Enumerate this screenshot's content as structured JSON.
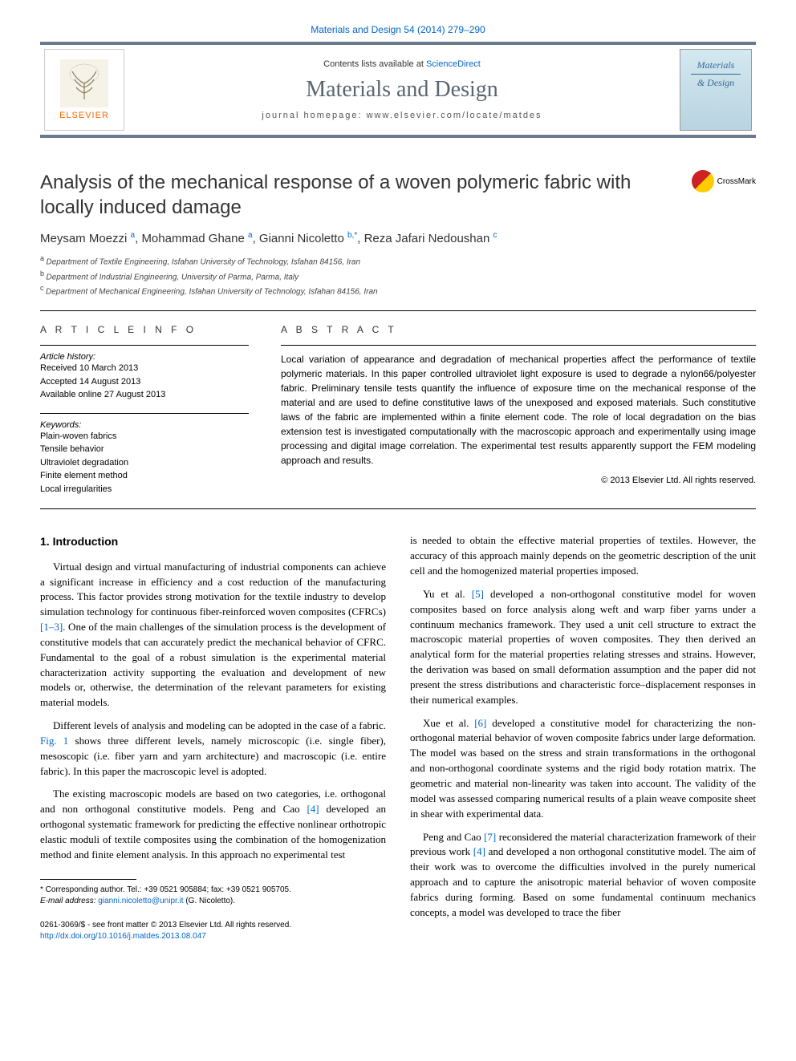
{
  "journal_ref": "Materials and Design 54 (2014) 279–290",
  "header": {
    "contents_prefix": "Contents lists available at ",
    "contents_link": "ScienceDirect",
    "journal_title": "Materials and Design",
    "homepage_label": "journal homepage: www.elsevier.com/locate/matdes",
    "publisher": "ELSEVIER",
    "cover_line1": "Materials",
    "cover_line2": "& Design"
  },
  "crossmark": "CrossMark",
  "article": {
    "title": "Analysis of the mechanical response of a woven polymeric fabric with locally induced damage",
    "authors_html": "Meysam Moezzi|a|, Mohammad Ghane|a|, Gianni Nicoletto|b,*|, Reza Jafari Nedoushan|c|",
    "authors": [
      {
        "name": "Meysam Moezzi",
        "sup": "a"
      },
      {
        "name": "Mohammad Ghane",
        "sup": "a"
      },
      {
        "name": "Gianni Nicoletto",
        "sup": "b,",
        "corr": "*"
      },
      {
        "name": "Reza Jafari Nedoushan",
        "sup": "c"
      }
    ],
    "affiliations": [
      {
        "sup": "a",
        "text": "Department of Textile Engineering, Isfahan University of Technology, Isfahan 84156, Iran"
      },
      {
        "sup": "b",
        "text": "Department of Industrial Engineering, University of Parma, Parma, Italy"
      },
      {
        "sup": "c",
        "text": "Department of Mechanical Engineering, Isfahan University of Technology, Isfahan 84156, Iran"
      }
    ]
  },
  "info": {
    "heading": "A R T I C L E   I N F O",
    "history_label": "Article history:",
    "received": "Received 10 March 2013",
    "accepted": "Accepted 14 August 2013",
    "online": "Available online 27 August 2013",
    "keywords_label": "Keywords:",
    "keywords": [
      "Plain-woven fabrics",
      "Tensile behavior",
      "Ultraviolet degradation",
      "Finite element method",
      "Local irregularities"
    ]
  },
  "abstract": {
    "heading": "A B S T R A C T",
    "text": "Local variation of appearance and degradation of mechanical properties affect the performance of textile polymeric materials. In this paper controlled ultraviolet light exposure is used to degrade a nylon66/polyester fabric. Preliminary tensile tests quantify the influence of exposure time on the mechanical response of the material and are used to define constitutive laws of the unexposed and exposed materials. Such constitutive laws of the fabric are implemented within a finite element code. The role of local degradation on the bias extension test is investigated computationally with the macroscopic approach and experimentally using image processing and digital image correlation. The experimental test results apparently support the FEM modeling approach and results.",
    "copyright": "© 2013 Elsevier Ltd. All rights reserved."
  },
  "body": {
    "intro_heading": "1. Introduction",
    "p1a": "Virtual design and virtual manufacturing of industrial components can achieve a significant increase in efficiency and a cost reduction of the manufacturing process. This factor provides strong motivation for the textile industry to develop simulation technology for continuous fiber-reinforced woven composites (CFRCs) ",
    "ref1": "[1–3]",
    "p1b": ". One of the main challenges of the simulation process is the development of constitutive models that can accurately predict the mechanical behavior of CFRC. Fundamental to the goal of a robust simulation is the experimental material characterization activity supporting the evaluation and development of new models or, otherwise, the determination of the relevant parameters for existing material models.",
    "p2a": "Different levels of analysis and modeling can be adopted in the case of a fabric. ",
    "fig1": "Fig. 1",
    "p2b": " shows three different levels, namely microscopic (i.e. single fiber), mesoscopic (i.e. fiber yarn and yarn architecture) and macroscopic (i.e. entire fabric). In this paper the macroscopic level is adopted.",
    "p3a": "The existing macroscopic models are based on two categories, i.e. orthogonal and non orthogonal constitutive models. Peng and Cao ",
    "ref4a": "[4]",
    "p3b": " developed an orthogonal systematic framework for predicting the effective nonlinear orthotropic elastic moduli of textile composites using the combination of the homogenization method and finite element analysis. In this approach no experimental test",
    "p4": "is needed to obtain the effective material properties of textiles. However, the accuracy of this approach mainly depends on the geometric description of the unit cell and the homogenized material properties imposed.",
    "p5a": "Yu et al. ",
    "ref5": "[5]",
    "p5b": " developed a non-orthogonal constitutive model for woven composites based on force analysis along weft and warp fiber yarns under a continuum mechanics framework. They used a unit cell structure to extract the macroscopic material properties of woven composites. They then derived an analytical form for the material properties relating stresses and strains. However, the derivation was based on small deformation assumption and the paper did not present the stress distributions and characteristic force–displacement responses in their numerical examples.",
    "p6a": "Xue et al. ",
    "ref6": "[6]",
    "p6b": " developed a constitutive model for characterizing the non-orthogonal material behavior of woven composite fabrics under large deformation. The model was based on the stress and strain transformations in the orthogonal and non-orthogonal coordinate systems and the rigid body rotation matrix. The geometric and material non-linearity was taken into account. The validity of the model was assessed comparing numerical results of a plain weave composite sheet in shear with experimental data.",
    "p7a": "Peng and Cao ",
    "ref7": "[7]",
    "p7b": " reconsidered the material characterization framework of their previous work ",
    "ref4b": "[4]",
    "p7c": " and developed a non orthogonal constitutive model. The aim of their work was to overcome the difficulties involved in the purely numerical approach and to capture the anisotropic material behavior of woven composite fabrics during forming. Based on some fundamental continuum mechanics concepts, a model was developed to trace the fiber"
  },
  "footnote": {
    "corr": "* Corresponding author. Tel.: +39 0521 905884; fax: +39 0521 905705.",
    "email_label": "E-mail address: ",
    "email": "gianni.nicoletto@unipr.it",
    "email_suffix": " (G. Nicoletto)."
  },
  "footer": {
    "line1": "0261-3069/$ - see front matter © 2013 Elsevier Ltd. All rights reserved.",
    "doi": "http://dx.doi.org/10.1016/j.matdes.2013.08.047"
  },
  "colors": {
    "link": "#0066cc",
    "bar": "#6b7a8f",
    "title": "#5a6572",
    "elsevier": "#ff6600"
  }
}
